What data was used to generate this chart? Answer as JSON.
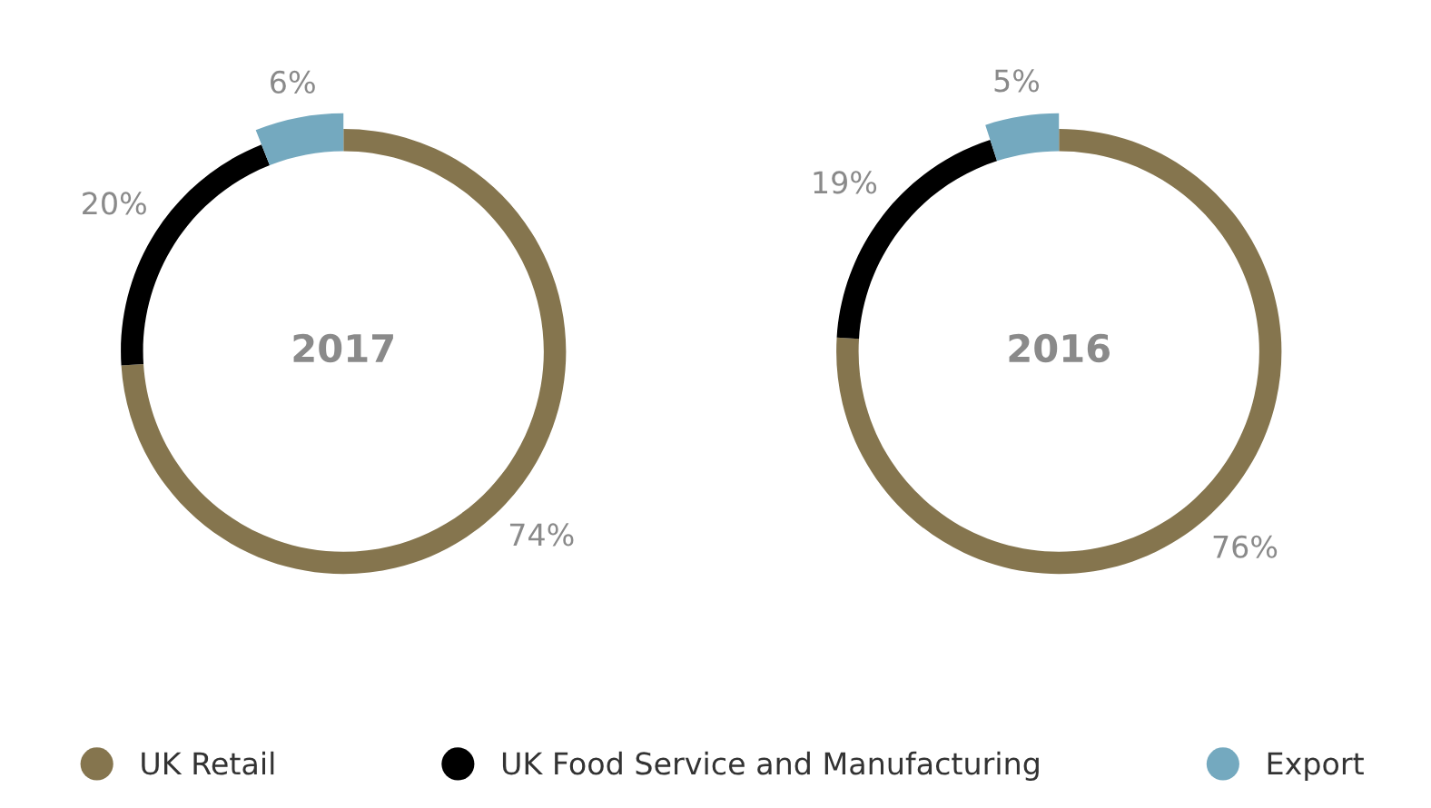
{
  "chart_data": [
    {
      "type": "donut",
      "title": "2017",
      "categories": [
        "UK Retail",
        "UK Food Service and Manufacturing",
        "Export"
      ],
      "values": [
        74,
        20,
        6
      ],
      "colors": [
        "#85754e",
        "#000000",
        "#74a9bf"
      ],
      "value_labels": [
        "74%",
        "20%",
        "6%"
      ],
      "legend": "bottom"
    },
    {
      "type": "donut",
      "title": "2016",
      "categories": [
        null,
        null,
        null
      ],
      "values": [
        76,
        19,
        5
      ],
      "colors": [
        "#85754e",
        "#000000",
        "#74a9bf"
      ],
      "value_labels": [
        "76%",
        "19%",
        "5%"
      ]
    }
  ]
}
